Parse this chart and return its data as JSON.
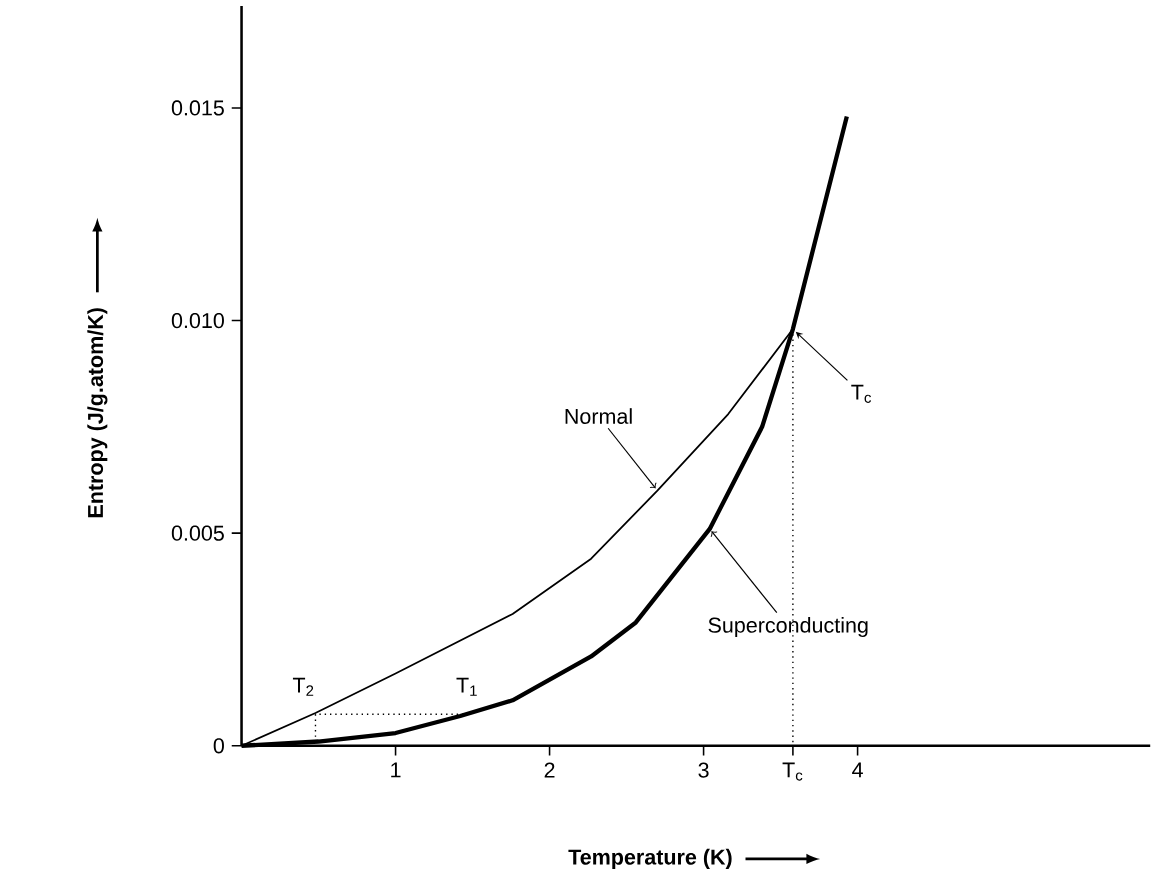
{
  "chart_data": {
    "type": "line",
    "xlabel": "Temperature (K)",
    "ylabel": "Entropy (J/g.atom/K)",
    "xlim": [
      0,
      5.9
    ],
    "ylim": [
      0,
      0.0174
    ],
    "xticks": [
      1,
      2,
      3,
      {
        "value": 3.58,
        "label": "T$_{c}$"
      },
      4
    ],
    "yticks": [
      0,
      0.005,
      {
        "value": 0.01,
        "label": "0.010"
      },
      0.015
    ],
    "series": [
      {
        "name": "Normal",
        "color": "#000000",
        "x": [
          0,
          0.48,
          1,
          1.76,
          2.27,
          2.7,
          3.16,
          3.58
        ],
        "values": [
          0,
          0.00077,
          0.0017,
          0.0031,
          0.0044,
          0.006,
          0.0078,
          0.0098
        ]
      },
      {
        "name": "Superconducting",
        "color": "#000000",
        "x": [
          0,
          0.5,
          1,
          1.42,
          1.76,
          2.27,
          2.56,
          3.04,
          3.38,
          3.58,
          3.93
        ],
        "values": [
          0,
          0.0001,
          0.0003,
          0.0007,
          0.00107,
          0.0021,
          0.0029,
          0.0051,
          0.0075,
          0.0098,
          0.0148
        ]
      },
      {
        "color": "#000000",
        "line_style": "dotted",
        "x": [
          1.44,
          0.48,
          0.48
        ],
        "values": [
          0.00074,
          0.00074,
          0
        ]
      },
      {
        "color": "#000000",
        "line_style": "dotted",
        "x": [
          3.58,
          3.58
        ],
        "values": [
          0.0098,
          0
        ]
      }
    ],
    "annotations": [
      {
        "text": "T$_{c}$",
        "x": 3.58,
        "y": 0.0098
      },
      {
        "text": "T$_{1}$",
        "x": 1.44,
        "y": 0.00074
      },
      {
        "text": "T$_{2}$",
        "x": 0.48,
        "y": 0.00074
      }
    ]
  }
}
